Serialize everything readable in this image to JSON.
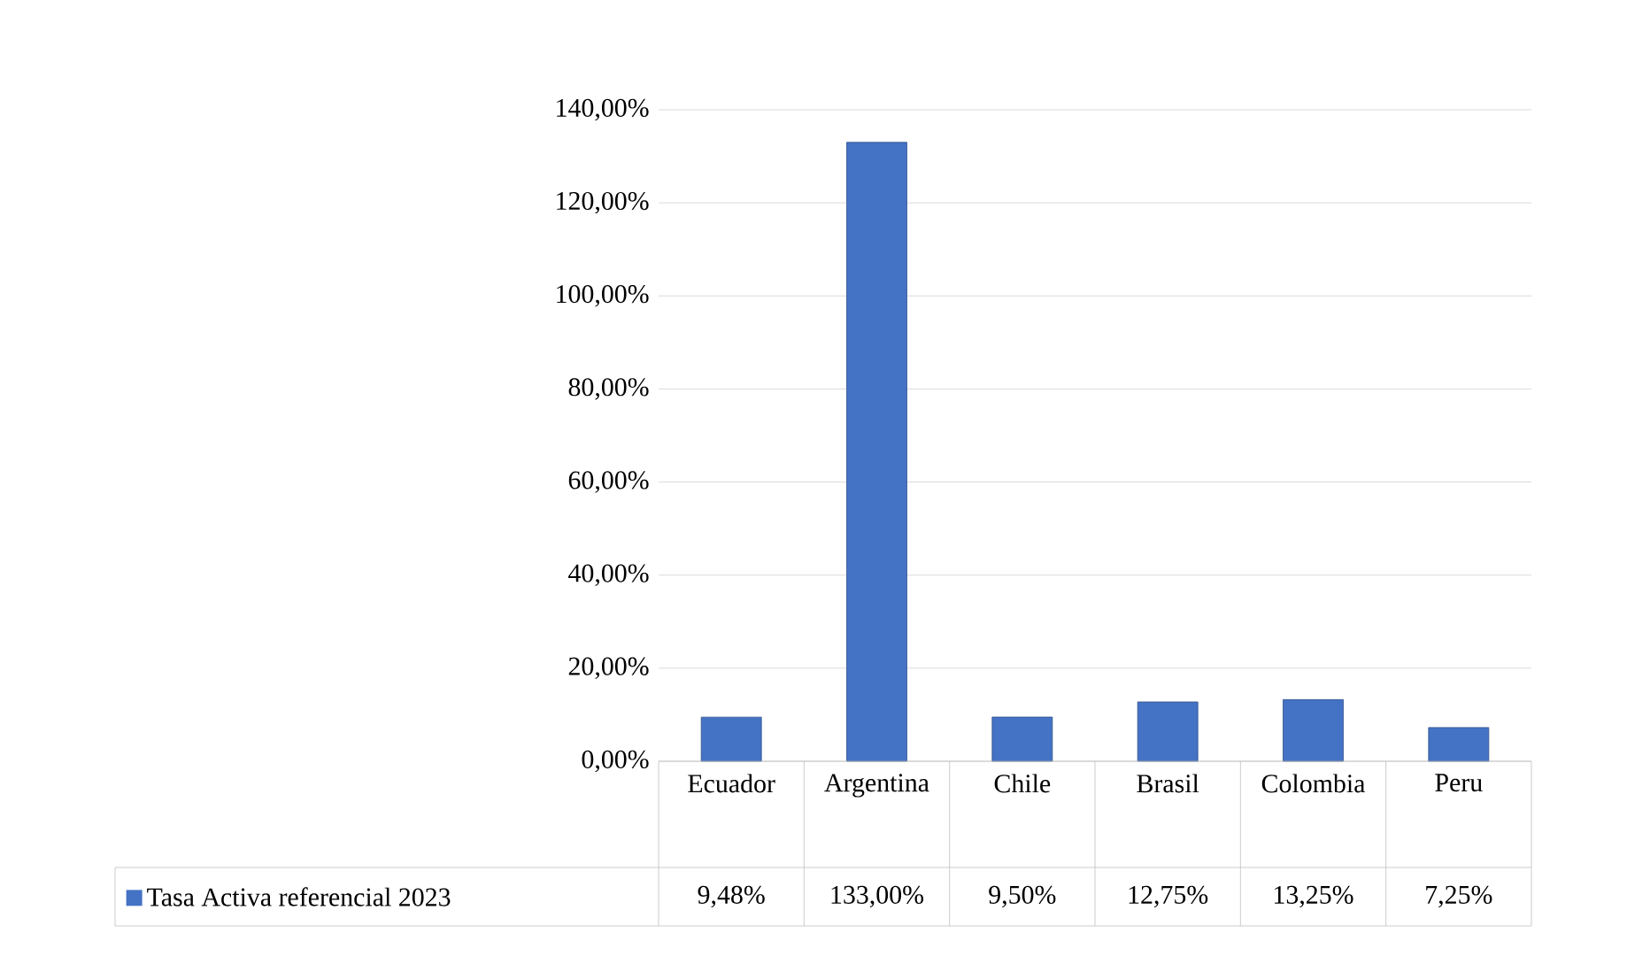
{
  "chart_data": {
    "type": "bar",
    "categories": [
      "Ecuador",
      "Argentina",
      "Chile",
      "Brasil",
      "Colombia",
      "Peru"
    ],
    "series": [
      {
        "name": "Tasa Activa referencial 2023",
        "color": "#4472c4",
        "values": [
          9.48,
          133.0,
          9.5,
          12.75,
          13.25,
          7.25
        ],
        "value_labels": [
          "9,48%",
          "133,00%",
          "9,50%",
          "12,75%",
          "13,25%",
          "7,25%"
        ]
      }
    ],
    "ylim": [
      0,
      140
    ],
    "yticks": [
      {
        "value": 0,
        "label": "0,00%"
      },
      {
        "value": 20,
        "label": "20,00%"
      },
      {
        "value": 40,
        "label": "40,00%"
      },
      {
        "value": 60,
        "label": "60,00%"
      },
      {
        "value": 80,
        "label": "80,00%"
      },
      {
        "value": 100,
        "label": "100,00%"
      },
      {
        "value": 120,
        "label": "120,00%"
      },
      {
        "value": 140,
        "label": "140,00%"
      }
    ],
    "grid": "y",
    "legend": "bottom"
  }
}
